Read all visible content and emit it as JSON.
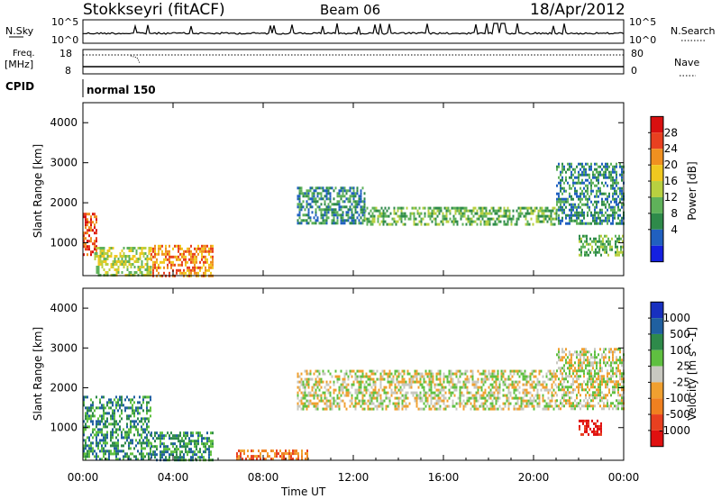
{
  "header": {
    "station": "Stokkseyri (fitACF)",
    "beam": "Beam 06",
    "date": "18/Apr/2012"
  },
  "aux_panels": {
    "nsky": {
      "label": "N.Sky",
      "ticks_left": [
        "10^5",
        "10^0"
      ],
      "ticks_right": [
        "10^5",
        "10^0"
      ],
      "right_label": "N.Search"
    },
    "freq": {
      "label_top": "Freq.",
      "label_bottom": "[MHz]",
      "ticks_left": [
        "18",
        "8"
      ],
      "ticks_right": [
        "80",
        "0"
      ],
      "right_label": "Nave"
    },
    "cpid": {
      "label": "CPID",
      "program": "normal 150"
    }
  },
  "chart_data": [
    {
      "type": "heatmap",
      "title": "",
      "xlabel": "",
      "ylabel": "Slant Range [km]",
      "xlim": [
        "00:00",
        "00:00"
      ],
      "ylim": [
        180,
        4500
      ],
      "yticks": [
        "1000",
        "2000",
        "3000",
        "4000"
      ],
      "colorbar": {
        "label": "Power [dB]",
        "ticks": [
          "4",
          "8",
          "12",
          "16",
          "20",
          "24",
          "28"
        ],
        "colors": [
          "#1420e0",
          "#2060c0",
          "#2e8a4a",
          "#5fb25a",
          "#b8d040",
          "#f0c820",
          "#f09020",
          "#e84020",
          "#d81010"
        ]
      },
      "regions": [
        {
          "t_start": 0.0,
          "t_end": 0.6,
          "r_start": 700,
          "r_end": 1750,
          "level_db": 28
        },
        {
          "t_start": 0.5,
          "t_end": 3.0,
          "r_start": 200,
          "r_end": 900,
          "level_db": 16
        },
        {
          "t_start": 3.0,
          "t_end": 5.8,
          "r_start": 200,
          "r_end": 950,
          "level_db": 22
        },
        {
          "t_start": 9.5,
          "t_end": 12.5,
          "r_start": 1500,
          "r_end": 2400,
          "level_db": 8
        },
        {
          "t_start": 12.5,
          "t_end": 21.0,
          "r_start": 1450,
          "r_end": 1900,
          "level_db": 12
        },
        {
          "t_start": 21.0,
          "t_end": 24.0,
          "r_start": 1500,
          "r_end": 3000,
          "level_db": 6
        },
        {
          "t_start": 22.0,
          "t_end": 24.0,
          "r_start": 700,
          "r_end": 1200,
          "level_db": 10
        }
      ]
    },
    {
      "type": "heatmap",
      "title": "",
      "xlabel": "Time UT",
      "ylabel": "Slant Range [km]",
      "xlim": [
        "00:00",
        "00:00"
      ],
      "ylim": [
        180,
        4500
      ],
      "yticks": [
        "1000",
        "2000",
        "3000",
        "4000"
      ],
      "xticks": [
        "00:00",
        "04:00",
        "08:00",
        "12:00",
        "16:00",
        "20:00",
        "00:00"
      ],
      "colorbar": {
        "label": "Velocity [m s^-1]",
        "ticks": [
          "1000",
          "500",
          "100",
          "25",
          "-25",
          "-100",
          "-500",
          "-1000"
        ],
        "colors": [
          "#1830c0",
          "#2060a0",
          "#2e8a4a",
          "#5fc040",
          "#c8c8c0",
          "#f0a030",
          "#f08020",
          "#e84020",
          "#e01010"
        ]
      },
      "regions": [
        {
          "t_start": 0.0,
          "t_end": 3.0,
          "r_start": 200,
          "r_end": 1800,
          "velocity": 100
        },
        {
          "t_start": 3.0,
          "t_end": 5.8,
          "r_start": 200,
          "r_end": 900,
          "velocity": 200
        },
        {
          "t_start": 6.8,
          "t_end": 10.0,
          "r_start": 200,
          "r_end": 450,
          "velocity": -100
        },
        {
          "t_start": 9.5,
          "t_end": 21.0,
          "r_start": 1450,
          "r_end": 2450,
          "velocity": 0
        },
        {
          "t_start": 21.0,
          "t_end": 24.0,
          "r_start": 1500,
          "r_end": 3000,
          "velocity": 0
        },
        {
          "t_start": 22.0,
          "t_end": 23.0,
          "r_start": 800,
          "r_end": 1200,
          "velocity": -700
        }
      ]
    }
  ]
}
